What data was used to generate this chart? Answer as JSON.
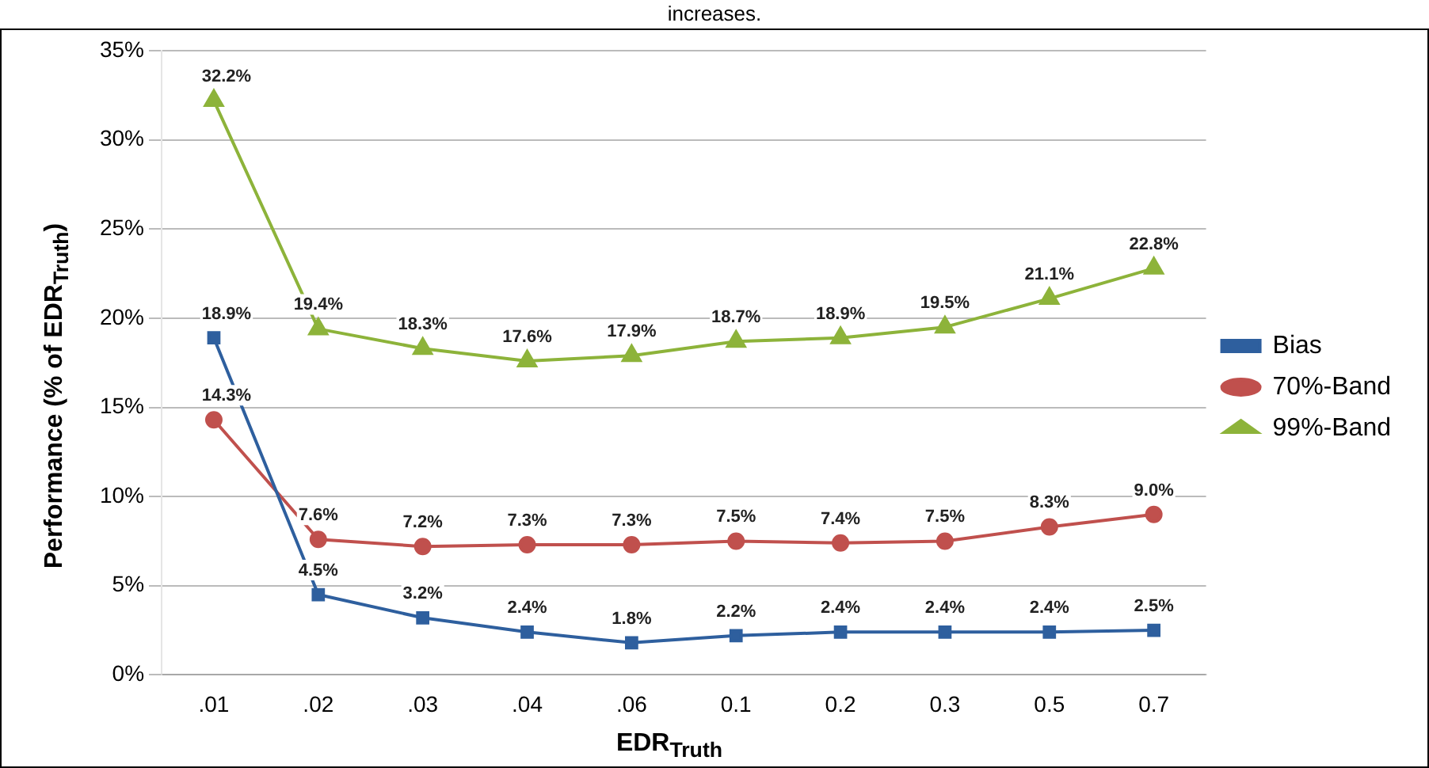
{
  "chart_data": {
    "type": "line",
    "xlabel": "EDR$_{Truth}$",
    "ylabel": "Performance (% of EDR$_{Truth}$)",
    "annotations": [
      "increases."
    ],
    "categories": [
      ".01",
      ".02",
      ".03",
      ".04",
      ".06",
      "0.1",
      "0.2",
      "0.3",
      "0.5",
      "0.7"
    ],
    "series": [
      {
        "name": "Bias",
        "color": "#2e5f9e",
        "marker": "square",
        "values": [
          18.9,
          4.5,
          3.2,
          2.4,
          1.8,
          2.2,
          2.4,
          2.4,
          2.4,
          2.5
        ],
        "value_labels": [
          "18.9%",
          "4.5%",
          "3.2%",
          "2.4%",
          "1.8%",
          "2.2%",
          "2.4%",
          "2.4%",
          "2.4%",
          "2.5%"
        ]
      },
      {
        "name": "70%-Band",
        "color": "#c0504d",
        "marker": "circle",
        "values": [
          14.3,
          7.6,
          7.2,
          7.3,
          7.3,
          7.5,
          7.4,
          7.5,
          8.3,
          9.0
        ],
        "value_labels": [
          "14.3%",
          "7.6%",
          "7.2%",
          "7.3%",
          "7.3%",
          "7.5%",
          "7.4%",
          "7.5%",
          "8.3%",
          "9.0%"
        ]
      },
      {
        "name": "99%-Band",
        "color": "#8db33a",
        "marker": "triangle",
        "values": [
          32.2,
          19.4,
          18.3,
          17.6,
          17.9,
          18.7,
          18.9,
          19.5,
          21.1,
          22.8
        ],
        "value_labels": [
          "32.2%",
          "19.4%",
          "18.3%",
          "17.6%",
          "17.9%",
          "18.7%",
          "18.9%",
          "19.5%",
          "21.1%",
          "22.8%"
        ]
      }
    ],
    "ylim": [
      0,
      35
    ],
    "yticks": [
      {
        "value": 0,
        "label": "0%"
      },
      {
        "value": 5,
        "label": "5%"
      },
      {
        "value": 10,
        "label": "10%"
      },
      {
        "value": 15,
        "label": "15%"
      },
      {
        "value": 20,
        "label": "20%"
      },
      {
        "value": 25,
        "label": "25%"
      },
      {
        "value": 30,
        "label": "30%"
      },
      {
        "value": 35,
        "label": "35%"
      }
    ],
    "grid": "y",
    "legend": "right",
    "line_style": "solid"
  }
}
